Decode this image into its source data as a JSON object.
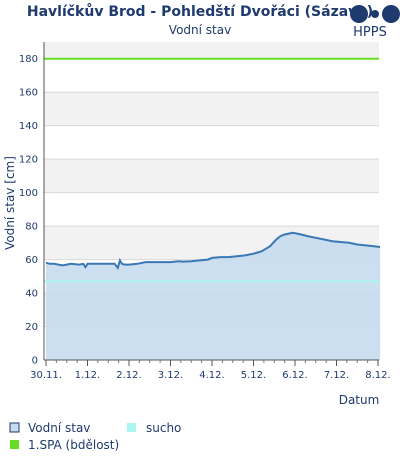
{
  "chart_data": {
    "type": "area",
    "title": "Havlíčkův Brod - Pohledští Dvořáci (Sázava)",
    "subtitle": "Vodní stav",
    "xlabel": "Datum",
    "ylabel": "Vodní stav [cm]",
    "ylim": [
      0,
      190
    ],
    "yticks": [
      "0",
      "20",
      "40",
      "60",
      "80",
      "100",
      "120",
      "140",
      "160",
      "180"
    ],
    "x_ticks": [
      "30.11.",
      "1.12.",
      "2.12.",
      "3.12.",
      "4.12.",
      "5.12.",
      "6.12.",
      "7.12.",
      "8.12."
    ],
    "xlim": [
      0,
      8.1
    ],
    "grid": true,
    "legend": "bottom",
    "series": [
      {
        "name": "Vodní stav",
        "color": "#3a78b5",
        "fill": "#c6dbef",
        "points": [
          [
            0.0,
            58
          ],
          [
            0.1,
            57.5
          ],
          [
            0.2,
            57.5
          ],
          [
            0.3,
            57
          ],
          [
            0.4,
            56.5
          ],
          [
            0.5,
            57
          ],
          [
            0.6,
            57.5
          ],
          [
            0.8,
            57
          ],
          [
            0.9,
            57.5
          ],
          [
            0.95,
            55.5
          ],
          [
            1.0,
            57.5
          ],
          [
            1.2,
            57.5
          ],
          [
            1.4,
            57.5
          ],
          [
            1.65,
            57.5
          ],
          [
            1.73,
            55
          ],
          [
            1.78,
            59.5
          ],
          [
            1.83,
            57.5
          ],
          [
            1.9,
            57
          ],
          [
            2.0,
            57
          ],
          [
            2.2,
            57.5
          ],
          [
            2.4,
            58.5
          ],
          [
            2.6,
            58.5
          ],
          [
            2.8,
            58.5
          ],
          [
            3.0,
            58.5
          ],
          [
            3.2,
            59
          ],
          [
            3.3,
            58.8
          ],
          [
            3.5,
            59
          ],
          [
            3.7,
            59.5
          ],
          [
            3.9,
            60
          ],
          [
            4.0,
            61
          ],
          [
            4.2,
            61.5
          ],
          [
            4.4,
            61.5
          ],
          [
            4.6,
            62
          ],
          [
            4.8,
            62.5
          ],
          [
            5.0,
            63.5
          ],
          [
            5.2,
            65
          ],
          [
            5.4,
            68
          ],
          [
            5.55,
            72
          ],
          [
            5.65,
            74
          ],
          [
            5.75,
            75
          ],
          [
            5.85,
            75.5
          ],
          [
            5.95,
            76
          ],
          [
            6.05,
            75.5
          ],
          [
            6.15,
            75
          ],
          [
            6.3,
            74
          ],
          [
            6.5,
            73
          ],
          [
            6.7,
            72
          ],
          [
            6.9,
            71
          ],
          [
            7.1,
            70.5
          ],
          [
            7.3,
            70
          ],
          [
            7.5,
            69
          ],
          [
            7.7,
            68.5
          ],
          [
            7.9,
            68
          ],
          [
            8.05,
            67.5
          ]
        ]
      },
      {
        "name": "1.SPA (bdělost)",
        "color": "#66dd22",
        "value": 180
      },
      {
        "name": "sucho",
        "color": "#aaf5f0",
        "value": 47
      }
    ]
  },
  "brand": {
    "label": "HPPS",
    "color": "#1f3a6e"
  }
}
